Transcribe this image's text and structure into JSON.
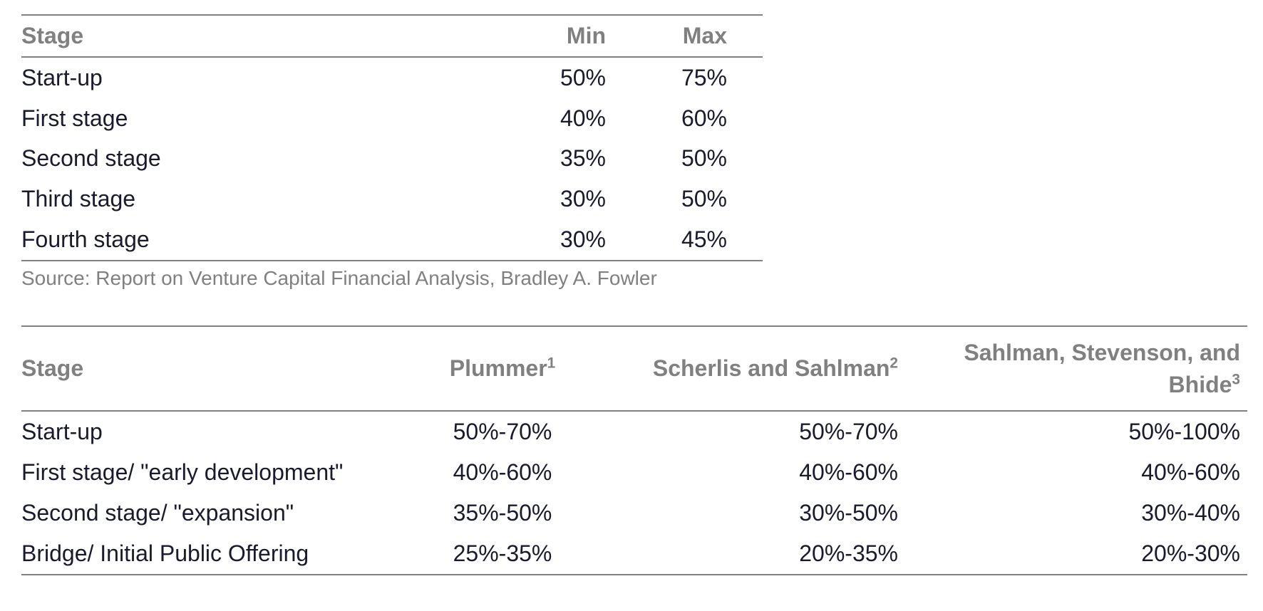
{
  "table1": {
    "type": "table",
    "header_color": "#808080",
    "text_color": "#1a1a2e",
    "border_color": "#808080",
    "font_size_pt": 24,
    "columns": [
      "Stage",
      "Min",
      "Max"
    ],
    "rows": [
      [
        "Start-up",
        "50%",
        "75%"
      ],
      [
        "First stage",
        "40%",
        "60%"
      ],
      [
        "Second stage",
        "35%",
        "50%"
      ],
      [
        "Third stage",
        "30%",
        "50%"
      ],
      [
        "Fourth stage",
        "30%",
        "45%"
      ]
    ],
    "source_note": "Source: Report on Venture Capital Financial Analysis, Bradley A. Fowler"
  },
  "table2": {
    "type": "table",
    "header_color": "#808080",
    "text_color": "#1a1a2e",
    "border_color": "#808080",
    "font_size_pt": 24,
    "columns_html": [
      "Stage",
      "Plummer<sup>1</sup>",
      "Scherlis and Sahlman<sup>2</sup>",
      "Sahlman, Stevenson, and Bhide<sup>3</sup>"
    ],
    "rows": [
      [
        "Start-up",
        "50%-70%",
        "50%-70%",
        "50%-100%"
      ],
      [
        "First stage/ \"early development\"",
        "40%-60%",
        "40%-60%",
        "40%-60%"
      ],
      [
        "Second stage/ \"expansion\"",
        "35%-50%",
        "30%-50%",
        "30%-40%"
      ],
      [
        "Bridge/ Initial Public Offering",
        "25%-35%",
        "20%-35%",
        "20%-30%"
      ]
    ]
  }
}
